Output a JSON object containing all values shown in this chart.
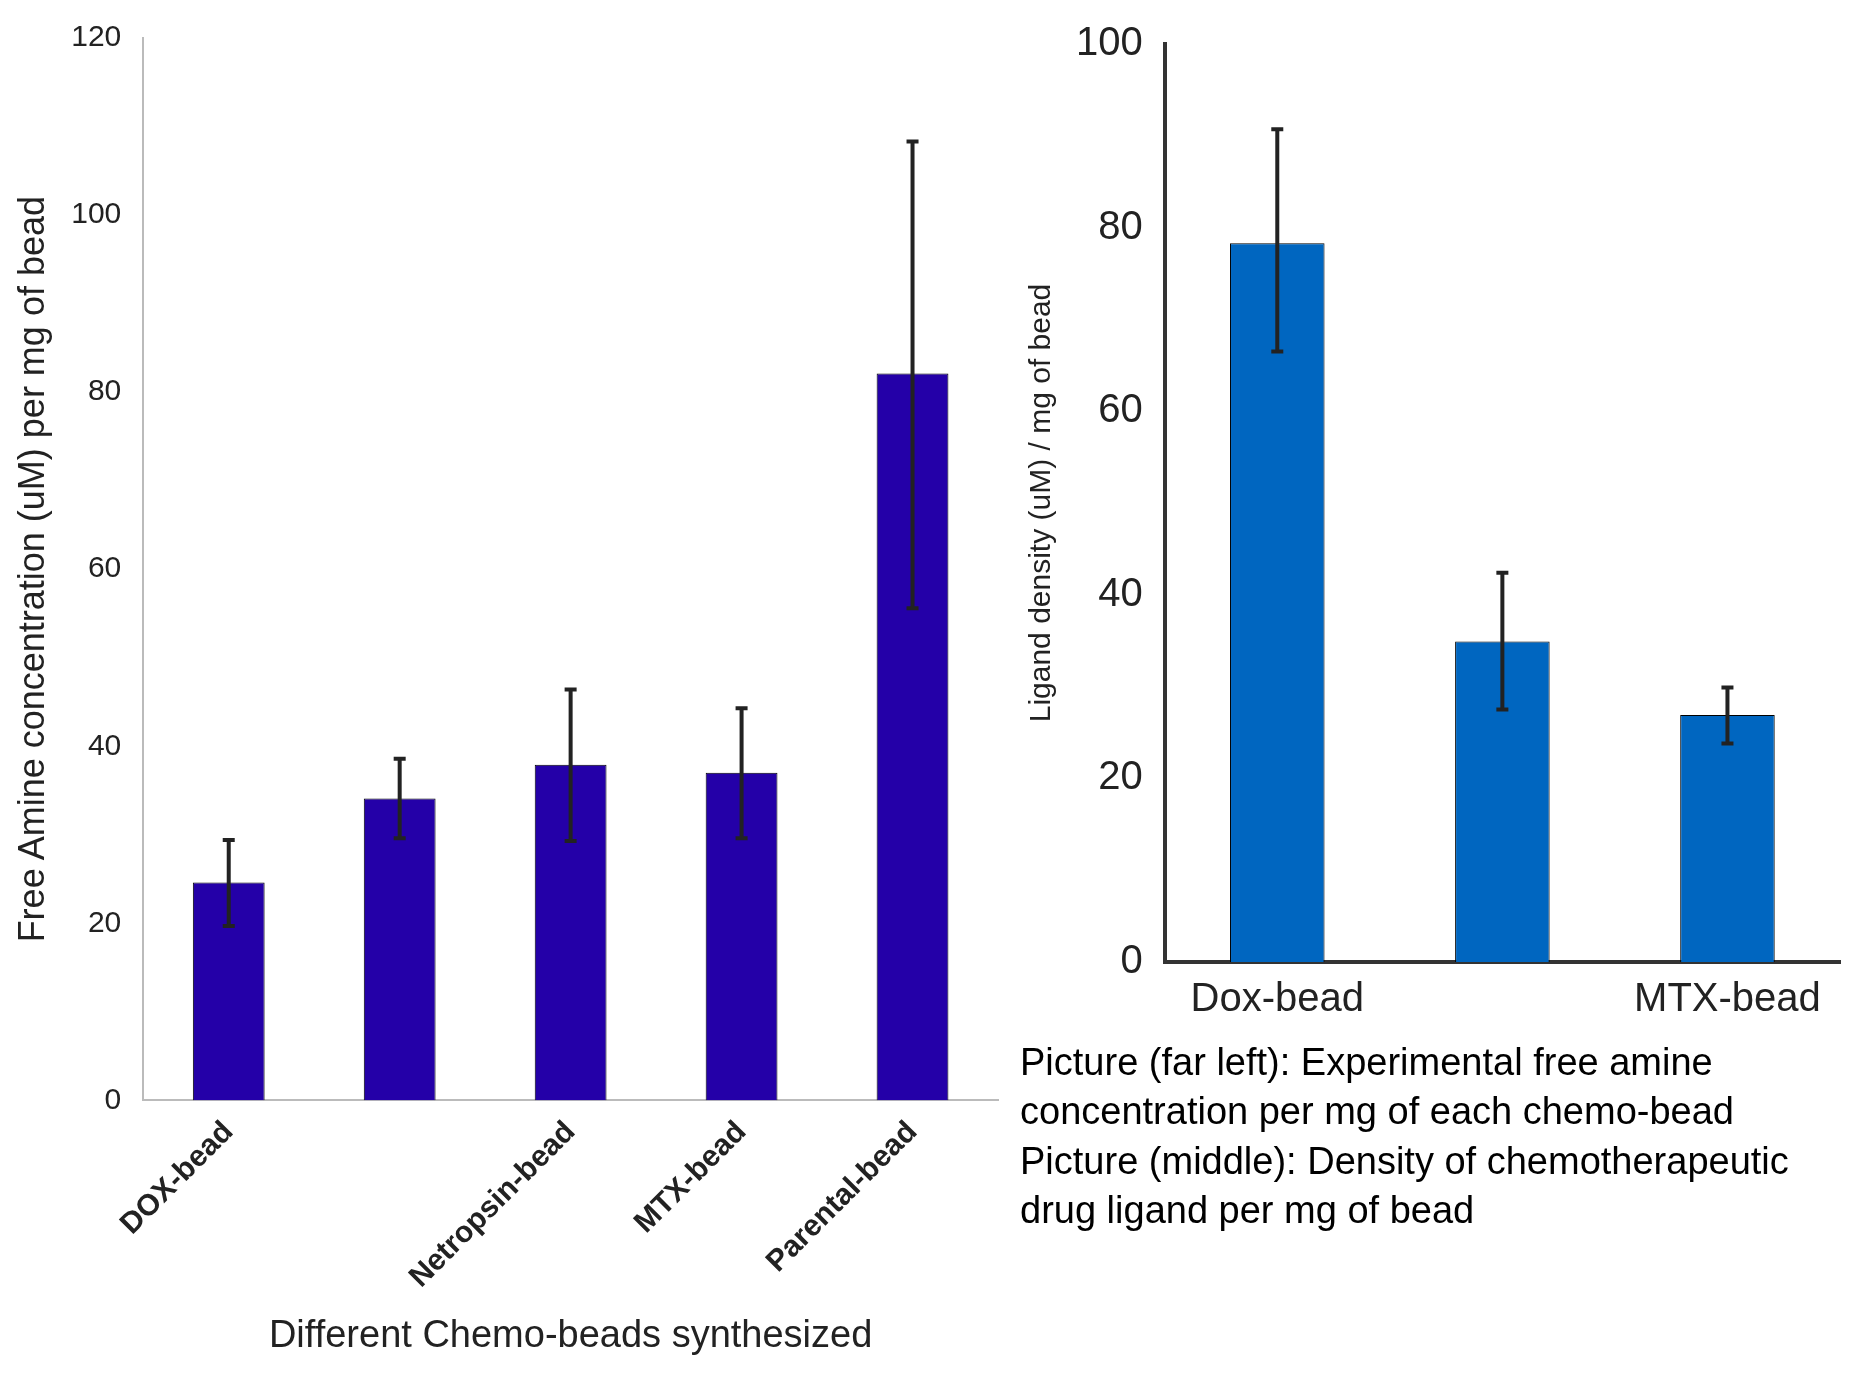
{
  "chart_data": [
    {
      "type": "bar",
      "xlabel": "Different Chemo-beads synthesized",
      "ylabel": "Free Amine concentration (uM) per mg of bead",
      "categories": [
        "DOX-bead",
        null,
        "Netropsin-bead",
        "MTX-bead",
        "Parental-bead"
      ],
      "values": [
        24.6,
        34.1,
        37.9,
        37,
        82.1
      ],
      "color": "#2400a8",
      "errors": [
        [
          19.7,
          29.4
        ],
        [
          29.6,
          38.6
        ],
        [
          29.3,
          46.4
        ],
        [
          29.6,
          44.3
        ],
        [
          55.6,
          108.3
        ]
      ],
      "ylim": [
        0,
        120
      ],
      "yticks": [
        0,
        20,
        40,
        60,
        80,
        100,
        120
      ]
    },
    {
      "type": "bar",
      "ylabel": "Ligand density (uM) / mg of bead",
      "categories": [
        "Dox-bead",
        null,
        "MTX-bead"
      ],
      "values": [
        78.3,
        34.9,
        26.9
      ],
      "color": "#0066c0",
      "errors": [
        [
          66.5,
          90.7
        ],
        [
          27.5,
          42.4
        ],
        [
          23.8,
          29.9
        ]
      ],
      "ylim": [
        0,
        100
      ],
      "yticks": [
        0,
        20,
        40,
        60,
        80,
        100
      ],
      "annotations": [
        "Picture (far left): Experimental free amine concentration per mg of each chemo-bead",
        "Picture (middle): Density of chemotherapeutic drug ligand per mg of bead"
      ]
    }
  ]
}
